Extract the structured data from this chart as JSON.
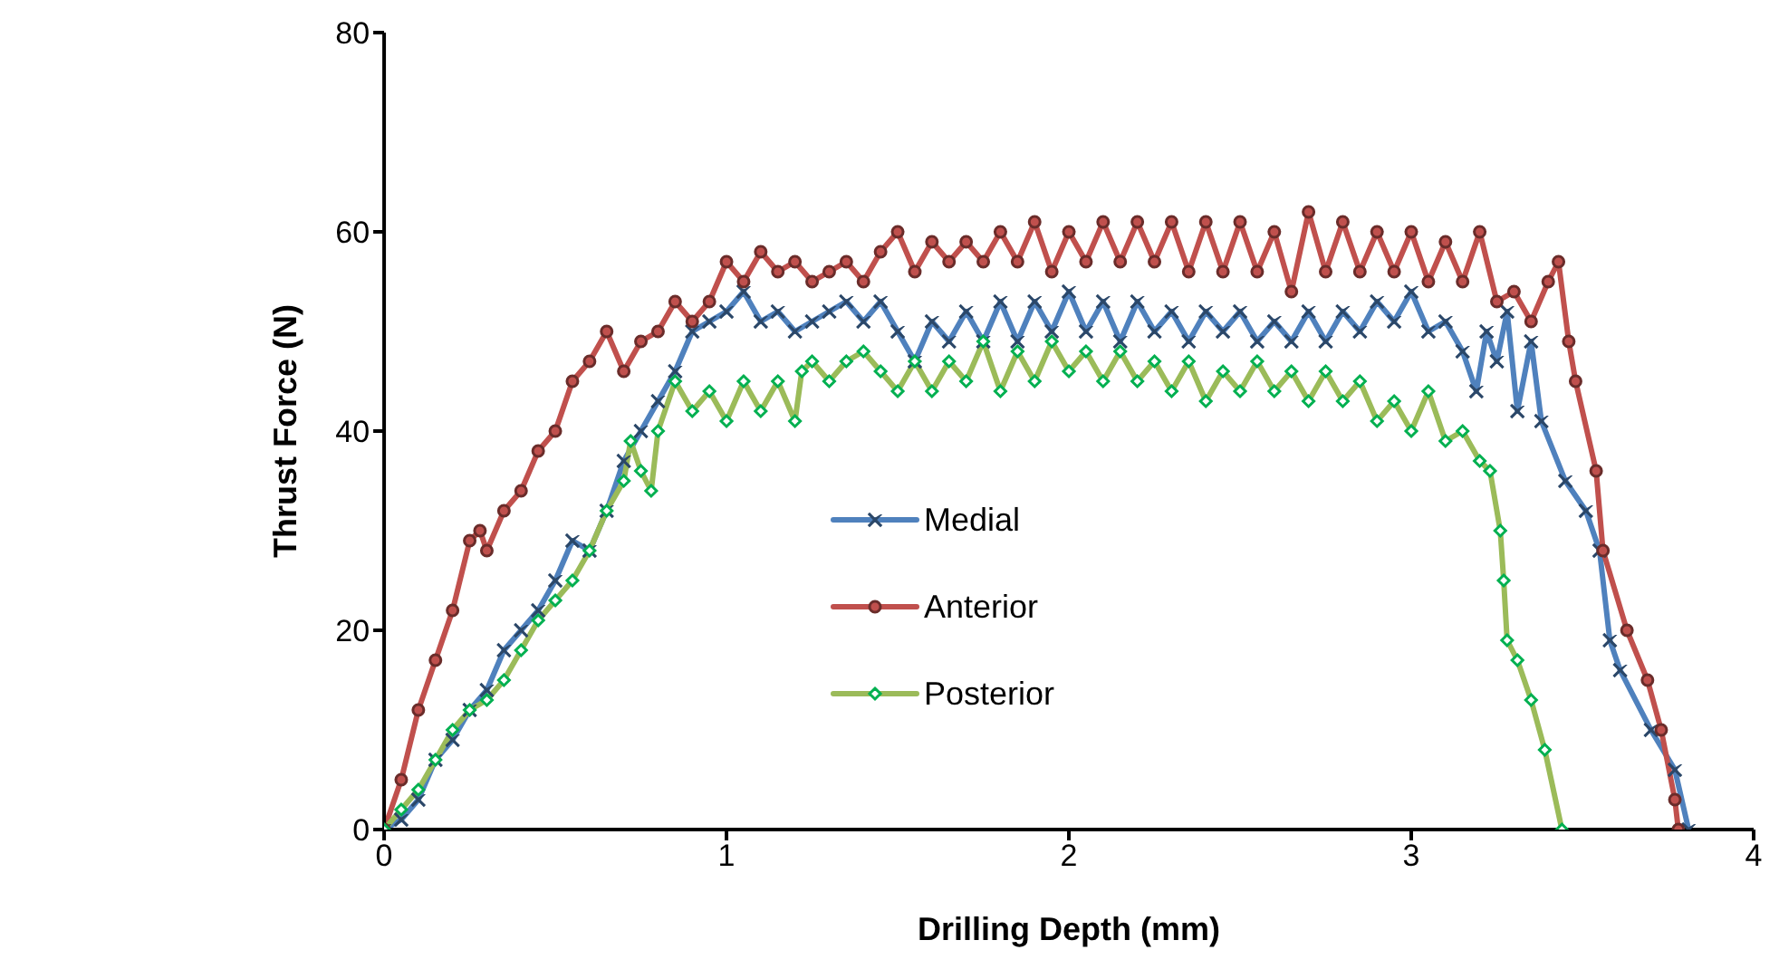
{
  "chart_data": {
    "type": "line",
    "xlabel": "Drilling  Depth (mm)",
    "ylabel": "Thrust Force (N)",
    "xlim": [
      0,
      4
    ],
    "xticks": [
      0,
      1,
      2,
      3,
      4
    ],
    "ylim": [
      0,
      80
    ],
    "yticks": [
      0,
      20,
      40,
      60,
      80
    ],
    "grid": false,
    "legend": "center",
    "series": [
      {
        "name": "Medial",
        "color": "#4f81bd",
        "marker": "cross",
        "x": [
          0,
          0.05,
          0.1,
          0.15,
          0.2,
          0.25,
          0.3,
          0.35,
          0.4,
          0.45,
          0.5,
          0.55,
          0.6,
          0.65,
          0.7,
          0.75,
          0.8,
          0.85,
          0.9,
          0.95,
          1.0,
          1.05,
          1.1,
          1.15,
          1.2,
          1.25,
          1.3,
          1.35,
          1.4,
          1.45,
          1.5,
          1.55,
          1.6,
          1.65,
          1.7,
          1.75,
          1.8,
          1.85,
          1.9,
          1.95,
          2.0,
          2.05,
          2.1,
          2.15,
          2.2,
          2.25,
          2.3,
          2.35,
          2.4,
          2.45,
          2.5,
          2.55,
          2.6,
          2.65,
          2.7,
          2.75,
          2.8,
          2.85,
          2.9,
          2.95,
          3.0,
          3.05,
          3.1,
          3.15,
          3.19,
          3.22,
          3.25,
          3.28,
          3.31,
          3.35,
          3.38,
          3.45,
          3.51,
          3.55,
          3.58,
          3.61,
          3.7,
          3.77,
          3.81
        ],
        "values": [
          0,
          1,
          3,
          7,
          9,
          12,
          14,
          18,
          20,
          22,
          25,
          29,
          28,
          32,
          37,
          40,
          43,
          46,
          50,
          51,
          52,
          54,
          51,
          52,
          50,
          51,
          52,
          53,
          51,
          53,
          50,
          47,
          51,
          49,
          52,
          49,
          53,
          49,
          53,
          50,
          54,
          50,
          53,
          49,
          53,
          50,
          52,
          49,
          52,
          50,
          52,
          49,
          51,
          49,
          52,
          49,
          52,
          50,
          53,
          51,
          54,
          50,
          51,
          48,
          44,
          50,
          47,
          52,
          42,
          49,
          41,
          35,
          32,
          28,
          19,
          16,
          10,
          6,
          0
        ]
      },
      {
        "name": "Anterior",
        "color": "#c0504d",
        "marker": "circle",
        "x": [
          0,
          0.05,
          0.1,
          0.15,
          0.2,
          0.25,
          0.28,
          0.3,
          0.35,
          0.4,
          0.45,
          0.5,
          0.55,
          0.6,
          0.65,
          0.7,
          0.75,
          0.8,
          0.85,
          0.9,
          0.95,
          1.0,
          1.05,
          1.1,
          1.15,
          1.2,
          1.25,
          1.3,
          1.35,
          1.4,
          1.45,
          1.5,
          1.55,
          1.6,
          1.65,
          1.7,
          1.75,
          1.8,
          1.85,
          1.9,
          1.95,
          2.0,
          2.05,
          2.1,
          2.15,
          2.2,
          2.25,
          2.3,
          2.35,
          2.4,
          2.45,
          2.5,
          2.55,
          2.6,
          2.65,
          2.7,
          2.75,
          2.8,
          2.85,
          2.9,
          2.95,
          3.0,
          3.05,
          3.1,
          3.15,
          3.2,
          3.25,
          3.3,
          3.35,
          3.4,
          3.43,
          3.46,
          3.48,
          3.54,
          3.56,
          3.63,
          3.69,
          3.73,
          3.77,
          3.78
        ],
        "values": [
          0,
          5,
          12,
          17,
          22,
          29,
          30,
          28,
          32,
          34,
          38,
          40,
          45,
          47,
          50,
          46,
          49,
          50,
          53,
          51,
          53,
          57,
          55,
          58,
          56,
          57,
          55,
          56,
          57,
          55,
          58,
          60,
          56,
          59,
          57,
          59,
          57,
          60,
          57,
          61,
          56,
          60,
          57,
          61,
          57,
          61,
          57,
          61,
          56,
          61,
          56,
          61,
          56,
          60,
          54,
          62,
          56,
          61,
          56,
          60,
          56,
          60,
          55,
          59,
          55,
          60,
          53,
          54,
          51,
          55,
          57,
          49,
          45,
          36,
          28,
          20,
          15,
          10,
          3,
          0
        ]
      },
      {
        "name": "Posterior",
        "color": "#9bbb59",
        "marker": "diamond",
        "x": [
          0,
          0.05,
          0.1,
          0.15,
          0.2,
          0.25,
          0.3,
          0.35,
          0.4,
          0.45,
          0.5,
          0.55,
          0.6,
          0.65,
          0.7,
          0.72,
          0.75,
          0.78,
          0.8,
          0.85,
          0.9,
          0.95,
          1.0,
          1.05,
          1.1,
          1.15,
          1.2,
          1.22,
          1.25,
          1.3,
          1.35,
          1.4,
          1.45,
          1.5,
          1.55,
          1.6,
          1.65,
          1.7,
          1.75,
          1.8,
          1.85,
          1.9,
          1.95,
          2.0,
          2.05,
          2.1,
          2.15,
          2.2,
          2.25,
          2.3,
          2.35,
          2.4,
          2.45,
          2.5,
          2.55,
          2.6,
          2.65,
          2.7,
          2.75,
          2.8,
          2.85,
          2.9,
          2.95,
          3.0,
          3.05,
          3.1,
          3.15,
          3.2,
          3.23,
          3.26,
          3.27,
          3.28,
          3.31,
          3.35,
          3.39,
          3.44
        ],
        "values": [
          0,
          2,
          4,
          7,
          10,
          12,
          13,
          15,
          18,
          21,
          23,
          25,
          28,
          32,
          35,
          39,
          36,
          34,
          40,
          45,
          42,
          44,
          41,
          45,
          42,
          45,
          41,
          46,
          47,
          45,
          47,
          48,
          46,
          44,
          47,
          44,
          47,
          45,
          49,
          44,
          48,
          45,
          49,
          46,
          48,
          45,
          48,
          45,
          47,
          44,
          47,
          43,
          46,
          44,
          47,
          44,
          46,
          43,
          46,
          43,
          45,
          41,
          43,
          40,
          44,
          39,
          40,
          37,
          36,
          30,
          25,
          19,
          17,
          13,
          8,
          0
        ]
      }
    ]
  }
}
